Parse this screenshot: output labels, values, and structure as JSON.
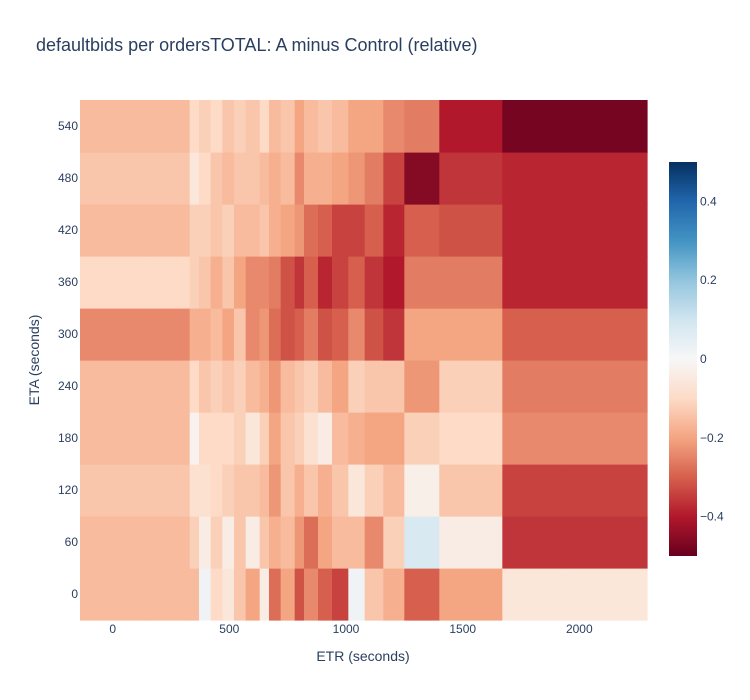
{
  "chart_data": {
    "type": "heatmap",
    "title": "defaultbids per ordersTOTAL: A minus Control (relative)",
    "xlabel": "ETR (seconds)",
    "ylabel": "ETA (seconds)",
    "x_edges": [
      -140,
      150,
      330,
      370,
      420,
      470,
      520,
      570,
      630,
      670,
      720,
      780,
      820,
      880,
      940,
      1010,
      1080,
      1160,
      1250,
      1400,
      1670,
      1920,
      2290
    ],
    "xlim": [
      -140,
      2290
    ],
    "y": [
      0,
      60,
      120,
      180,
      240,
      300,
      360,
      420,
      480,
      540
    ],
    "ylim": [
      -30,
      570
    ],
    "x_ticks": [
      0,
      500,
      1000,
      1500,
      2000
    ],
    "y_ticks": [
      0,
      60,
      120,
      180,
      240,
      300,
      360,
      420,
      480,
      540
    ],
    "z": [
      [
        -0.16,
        -0.16,
        -0.16,
        0.02,
        -0.1,
        -0.06,
        -0.14,
        -0.2,
        -0.04,
        -0.28,
        -0.2,
        -0.32,
        -0.24,
        -0.3,
        -0.34,
        0.02,
        -0.14,
        -0.18,
        -0.3,
        -0.2,
        -0.06,
        -0.06
      ],
      [
        -0.16,
        -0.16,
        -0.12,
        -0.04,
        -0.12,
        -0.04,
        -0.14,
        -0.04,
        -0.14,
        -0.18,
        -0.16,
        -0.22,
        -0.28,
        -0.2,
        -0.16,
        -0.16,
        -0.24,
        -0.12,
        0.08,
        -0.04,
        -0.36,
        -0.36
      ],
      [
        -0.14,
        -0.14,
        -0.08,
        -0.08,
        -0.1,
        -0.12,
        -0.14,
        -0.14,
        -0.16,
        -0.22,
        -0.14,
        -0.18,
        -0.14,
        -0.18,
        -0.14,
        -0.06,
        -0.12,
        -0.16,
        -0.03,
        -0.14,
        -0.34,
        -0.34
      ],
      [
        -0.16,
        -0.16,
        -0.02,
        -0.1,
        -0.1,
        -0.1,
        -0.12,
        -0.06,
        -0.12,
        -0.2,
        -0.14,
        -0.12,
        -0.08,
        -0.04,
        -0.16,
        -0.18,
        -0.2,
        -0.2,
        -0.12,
        -0.1,
        -0.24,
        -0.24
      ],
      [
        -0.16,
        -0.16,
        -0.1,
        -0.14,
        -0.12,
        -0.14,
        -0.12,
        -0.16,
        -0.18,
        -0.22,
        -0.16,
        -0.14,
        -0.12,
        -0.16,
        -0.2,
        -0.12,
        -0.14,
        -0.14,
        -0.22,
        -0.12,
        -0.26,
        -0.26
      ],
      [
        -0.24,
        -0.24,
        -0.18,
        -0.18,
        -0.16,
        -0.2,
        -0.14,
        -0.24,
        -0.22,
        -0.28,
        -0.32,
        -0.3,
        -0.26,
        -0.32,
        -0.3,
        -0.24,
        -0.32,
        -0.36,
        -0.2,
        -0.2,
        -0.3,
        -0.3
      ],
      [
        -0.1,
        -0.1,
        -0.12,
        -0.14,
        -0.18,
        -0.14,
        -0.2,
        -0.24,
        -0.24,
        -0.26,
        -0.32,
        -0.36,
        -0.3,
        -0.38,
        -0.34,
        -0.3,
        -0.36,
        -0.4,
        -0.26,
        -0.26,
        -0.38,
        -0.38
      ],
      [
        -0.16,
        -0.16,
        -0.12,
        -0.12,
        -0.14,
        -0.12,
        -0.16,
        -0.16,
        -0.14,
        -0.18,
        -0.2,
        -0.22,
        -0.28,
        -0.3,
        -0.34,
        -0.34,
        -0.3,
        -0.38,
        -0.3,
        -0.32,
        -0.38,
        -0.38
      ],
      [
        -0.14,
        -0.14,
        -0.06,
        -0.1,
        -0.14,
        -0.16,
        -0.14,
        -0.14,
        -0.16,
        -0.18,
        -0.16,
        -0.24,
        -0.18,
        -0.18,
        -0.2,
        -0.22,
        -0.26,
        -0.34,
        -0.46,
        -0.36,
        -0.38,
        -0.38
      ],
      [
        -0.16,
        -0.16,
        -0.1,
        -0.12,
        -0.1,
        -0.14,
        -0.12,
        -0.14,
        -0.1,
        -0.16,
        -0.14,
        -0.2,
        -0.16,
        -0.14,
        -0.16,
        -0.2,
        -0.2,
        -0.24,
        -0.26,
        -0.4,
        -0.48,
        -0.48
      ]
    ],
    "colorscale_name": "RdBu",
    "colorbar": {
      "range": [
        -0.5,
        0.5
      ],
      "ticks": [
        0.4,
        0.2,
        0,
        -0.2,
        -0.4
      ],
      "tick_labels": [
        "0.4",
        "0.2",
        "0",
        "−0.2",
        "−0.4"
      ]
    },
    "colorscale": [
      [
        0.0,
        "#67001f"
      ],
      [
        0.1,
        "#b2182b"
      ],
      [
        0.2,
        "#d6604d"
      ],
      [
        0.3,
        "#f4a582"
      ],
      [
        0.4,
        "#fddbc7"
      ],
      [
        0.5,
        "#f7f7f7"
      ],
      [
        0.6,
        "#d1e5f0"
      ],
      [
        0.7,
        "#92c5de"
      ],
      [
        0.8,
        "#4393c3"
      ],
      [
        0.9,
        "#2166ac"
      ],
      [
        1.0,
        "#053061"
      ]
    ],
    "grid": false,
    "legend": "none"
  }
}
